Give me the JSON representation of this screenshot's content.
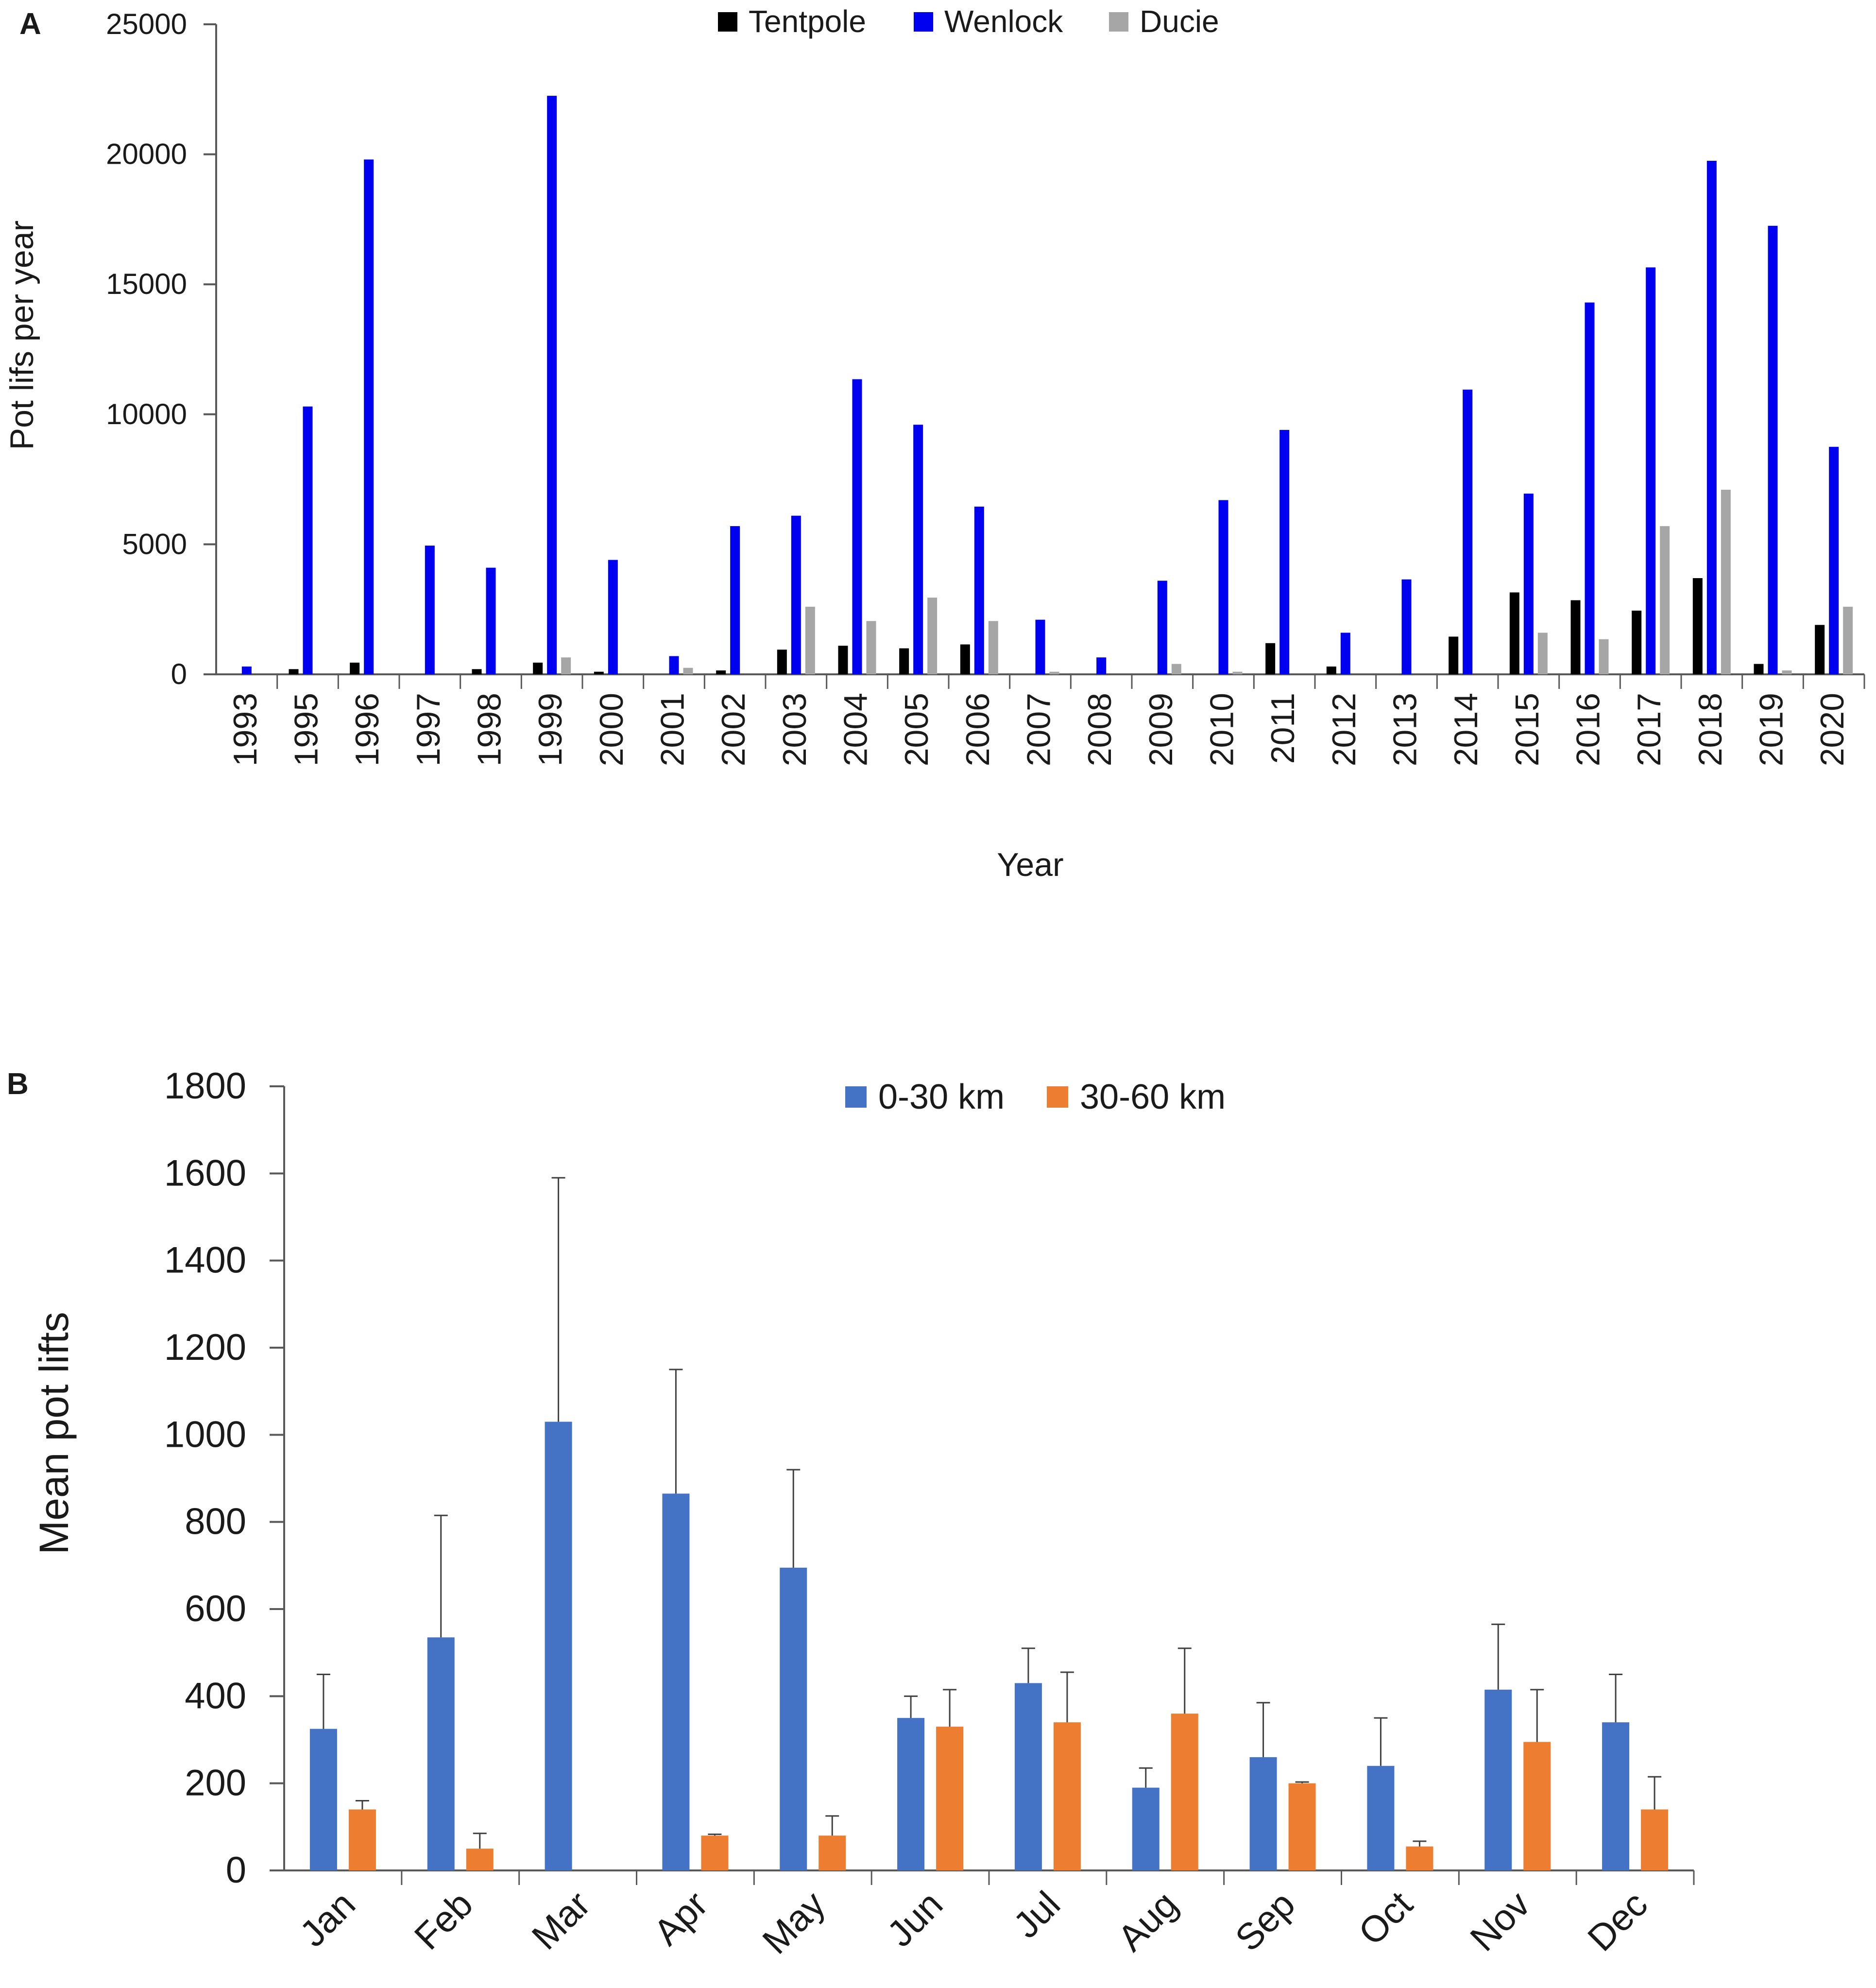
{
  "colors": {
    "tentpole": "#000000",
    "wenlock": "#0000f0",
    "ducie": "#a6a6a6",
    "near": "#4472c4",
    "far": "#ed7d31",
    "axis": "#595959",
    "error_bar": "#404040"
  },
  "chart_data": [
    {
      "panel": "A",
      "type": "bar",
      "title": "",
      "xlabel": "Year",
      "ylabel": "Pot lifs per year",
      "ylim": [
        0,
        25000
      ],
      "yticks": [
        0,
        5000,
        10000,
        15000,
        20000,
        25000
      ],
      "legend_position": "top-center",
      "grid": false,
      "categories": [
        "1993",
        "1995",
        "1996",
        "1997",
        "1998",
        "1999",
        "2000",
        "2001",
        "2002",
        "2003",
        "2004",
        "2005",
        "2006",
        "2007",
        "2008",
        "2009",
        "2010",
        "2011",
        "2012",
        "2013",
        "2014",
        "2015",
        "2016",
        "2017",
        "2018",
        "2019",
        "2020"
      ],
      "series": [
        {
          "name": "Tentpole",
          "color_key": "tentpole",
          "values": [
            0,
            200,
            450,
            0,
            200,
            450,
            100,
            0,
            150,
            950,
            1100,
            1000,
            1150,
            0,
            0,
            0,
            0,
            1200,
            300,
            0,
            1450,
            3150,
            2850,
            2450,
            3700,
            400,
            1900
          ]
        },
        {
          "name": "Wenlock",
          "color_key": "wenlock",
          "values": [
            300,
            10300,
            19800,
            4950,
            4100,
            22250,
            4400,
            700,
            5700,
            6100,
            11350,
            9600,
            6450,
            2100,
            650,
            3600,
            6700,
            9400,
            1600,
            3650,
            10950,
            6950,
            14300,
            15650,
            19750,
            17250,
            8750
          ]
        },
        {
          "name": "Ducie",
          "color_key": "ducie",
          "values": [
            0,
            0,
            0,
            0,
            0,
            650,
            0,
            250,
            0,
            2600,
            2050,
            2950,
            2050,
            100,
            0,
            400,
            100,
            0,
            0,
            0,
            0,
            1600,
            1350,
            5700,
            7100,
            150,
            2600
          ]
        }
      ]
    },
    {
      "panel": "B",
      "type": "bar",
      "title": "",
      "xlabel": "",
      "ylabel": "Mean pot lifts",
      "ylim": [
        0,
        1800
      ],
      "yticks": [
        0,
        200,
        400,
        600,
        800,
        1000,
        1200,
        1400,
        1600,
        1800
      ],
      "legend_position": "top-center",
      "grid": false,
      "categories": [
        "Jan",
        "Feb",
        "Mar",
        "Apr",
        "May",
        "Jun",
        "Jul",
        "Aug",
        "Sep",
        "Oct",
        "Nov",
        "Dec"
      ],
      "series": [
        {
          "name": "0-30 km",
          "color_key": "near",
          "values": [
            325,
            535,
            1030,
            865,
            695,
            350,
            430,
            190,
            260,
            240,
            415,
            340
          ],
          "error": [
            125,
            280,
            560,
            285,
            225,
            50,
            80,
            45,
            125,
            110,
            150,
            110
          ]
        },
        {
          "name": "30-60 km",
          "color_key": "far",
          "values": [
            140,
            50,
            0,
            80,
            80,
            330,
            340,
            360,
            200,
            55,
            295,
            140
          ],
          "error": [
            20,
            35,
            0,
            3,
            45,
            85,
            115,
            150,
            3,
            12,
            120,
            75
          ]
        }
      ]
    }
  ]
}
